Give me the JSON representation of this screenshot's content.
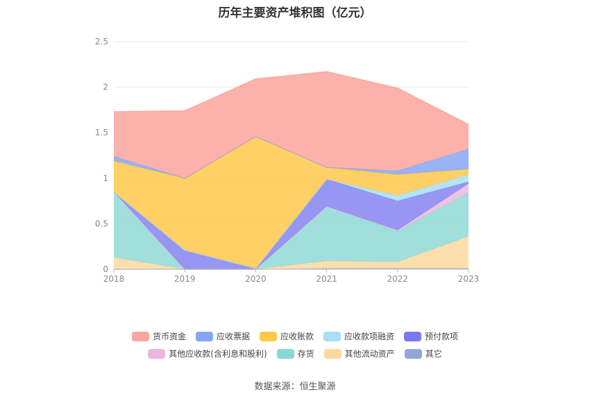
{
  "chart_data": {
    "type": "area",
    "stacked": true,
    "title": "历年主要资产堆积图（亿元）",
    "x": [
      "2018",
      "2019",
      "2020",
      "2021",
      "2022",
      "2023"
    ],
    "yticks": [
      "0",
      "0.5",
      "1",
      "1.5",
      "2",
      "2.5"
    ],
    "ylim": [
      0,
      2.5
    ],
    "grid": true,
    "legend_position": "bottom",
    "series": [
      {
        "name": "其它",
        "color": "#8fa8d8",
        "values": [
          0.0,
          0.0,
          0.0,
          0.01,
          0.01,
          0.01
        ]
      },
      {
        "name": "其他流动资产",
        "color": "#fdd9a0",
        "values": [
          0.13,
          0.0,
          0.0,
          0.08,
          0.07,
          0.35
        ]
      },
      {
        "name": "存货",
        "color": "#8fd9d6",
        "values": [
          0.72,
          0.0,
          0.0,
          0.6,
          0.34,
          0.48
        ]
      },
      {
        "name": "其他应收款(含利息和股利)",
        "color": "#eab8dc",
        "values": [
          0.0,
          0.0,
          0.0,
          0.0,
          0.01,
          0.1
        ]
      },
      {
        "name": "预付款项",
        "color": "#8584f0",
        "values": [
          0.0,
          0.21,
          0.01,
          0.3,
          0.32,
          0.02
        ]
      },
      {
        "name": "应收款项融资",
        "color": "#a8def6",
        "values": [
          0.0,
          0.0,
          0.0,
          0.0,
          0.06,
          0.08
        ]
      },
      {
        "name": "应收账款",
        "color": "#fec84a",
        "values": [
          0.34,
          0.79,
          1.45,
          0.13,
          0.23,
          0.06
        ]
      },
      {
        "name": "应收票据",
        "color": "#86a6f5",
        "values": [
          0.05,
          0.0,
          0.0,
          0.0,
          0.04,
          0.22
        ]
      },
      {
        "name": "货币资金",
        "color": "#fca59c",
        "values": [
          0.49,
          0.74,
          0.63,
          1.05,
          0.91,
          0.27
        ]
      }
    ]
  },
  "legend_rows": [
    [
      {
        "name": "货币资金",
        "color": "#fca59c"
      },
      {
        "name": "应收票据",
        "color": "#86a6f5"
      },
      {
        "name": "应收账款",
        "color": "#fec84a"
      },
      {
        "name": "应收款项融资",
        "color": "#a8def6"
      },
      {
        "name": "预付款项",
        "color": "#7b79ee"
      }
    ],
    [
      {
        "name": "其他应收款(含利息和股利)",
        "color": "#eab8dc"
      },
      {
        "name": "存货",
        "color": "#86d8d4"
      },
      {
        "name": "其他流动资产",
        "color": "#fdd9a0"
      },
      {
        "name": "其它",
        "color": "#8fa8d8"
      }
    ]
  ],
  "source": "数据来源：恒生聚源"
}
